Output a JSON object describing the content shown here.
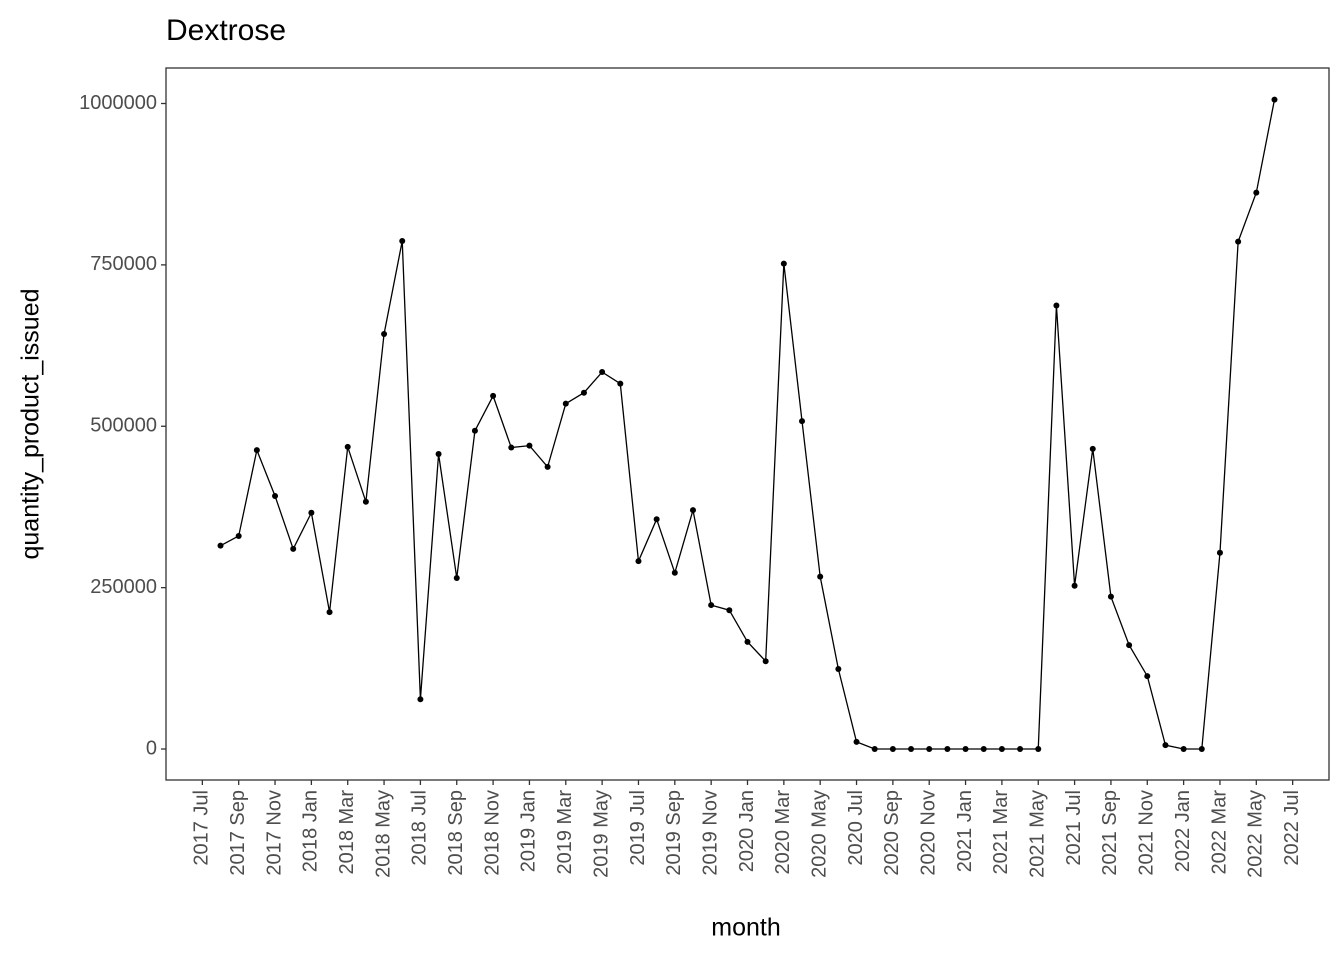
{
  "chart_data": {
    "type": "line",
    "title": "Dextrose",
    "x_label": "month",
    "y_label": "quantity_product_issued",
    "x": [
      "2017-08",
      "2017-09",
      "2017-10",
      "2017-11",
      "2017-12",
      "2018-01",
      "2018-02",
      "2018-03",
      "2018-04",
      "2018-05",
      "2018-06",
      "2018-07",
      "2018-08",
      "2018-09",
      "2018-10",
      "2018-11",
      "2018-12",
      "2019-01",
      "2019-02",
      "2019-03",
      "2019-04",
      "2019-05",
      "2019-06",
      "2019-07",
      "2019-08",
      "2019-09",
      "2019-10",
      "2019-11",
      "2019-12",
      "2020-01",
      "2020-02",
      "2020-03",
      "2020-04",
      "2020-05",
      "2020-06",
      "2020-07",
      "2020-08",
      "2020-09",
      "2020-10",
      "2020-11",
      "2020-12",
      "2021-01",
      "2021-02",
      "2021-03",
      "2021-04",
      "2021-05",
      "2021-06",
      "2021-07",
      "2021-08",
      "2021-09",
      "2021-10",
      "2021-11",
      "2021-12",
      "2022-01",
      "2022-02",
      "2022-03",
      "2022-04",
      "2022-05",
      "2022-06"
    ],
    "series": [
      {
        "name": "quantity_product_issued",
        "color": "#000000",
        "values": [
          315000,
          330000,
          463000,
          392000,
          310000,
          366000,
          212000,
          468000,
          383000,
          643000,
          787000,
          77000,
          457000,
          265000,
          493000,
          547000,
          467000,
          470000,
          437000,
          535000,
          552000,
          584000,
          566000,
          291000,
          356000,
          273000,
          370000,
          223000,
          215000,
          166000,
          136000,
          752000,
          508000,
          267000,
          124000,
          11000,
          0,
          0,
          0,
          0,
          0,
          0,
          0,
          0,
          0,
          0,
          687000,
          253000,
          465000,
          236000,
          161000,
          113000,
          6000,
          0,
          0,
          304000,
          786000,
          862000,
          1006000
        ]
      }
    ],
    "xlim": [
      "2017-05",
      "2022-09"
    ],
    "xticks": [
      {
        "value": "2017-07",
        "label": "2017 Jul"
      },
      {
        "value": "2017-09",
        "label": "2017 Sep"
      },
      {
        "value": "2017-11",
        "label": "2017 Nov"
      },
      {
        "value": "2018-01",
        "label": "2018 Jan"
      },
      {
        "value": "2018-03",
        "label": "2018 Mar"
      },
      {
        "value": "2018-05",
        "label": "2018 May"
      },
      {
        "value": "2018-07",
        "label": "2018 Jul"
      },
      {
        "value": "2018-09",
        "label": "2018 Sep"
      },
      {
        "value": "2018-11",
        "label": "2018 Nov"
      },
      {
        "value": "2019-01",
        "label": "2019 Jan"
      },
      {
        "value": "2019-03",
        "label": "2019 Mar"
      },
      {
        "value": "2019-05",
        "label": "2019 May"
      },
      {
        "value": "2019-07",
        "label": "2019 Jul"
      },
      {
        "value": "2019-09",
        "label": "2019 Sep"
      },
      {
        "value": "2019-11",
        "label": "2019 Nov"
      },
      {
        "value": "2020-01",
        "label": "2020 Jan"
      },
      {
        "value": "2020-03",
        "label": "2020 Mar"
      },
      {
        "value": "2020-05",
        "label": "2020 May"
      },
      {
        "value": "2020-07",
        "label": "2020 Jul"
      },
      {
        "value": "2020-09",
        "label": "2020 Sep"
      },
      {
        "value": "2020-11",
        "label": "2020 Nov"
      },
      {
        "value": "2021-01",
        "label": "2021 Jan"
      },
      {
        "value": "2021-03",
        "label": "2021 Mar"
      },
      {
        "value": "2021-05",
        "label": "2021 May"
      },
      {
        "value": "2021-07",
        "label": "2021 Jul"
      },
      {
        "value": "2021-09",
        "label": "2021 Sep"
      },
      {
        "value": "2021-11",
        "label": "2021 Nov"
      },
      {
        "value": "2022-01",
        "label": "2022 Jan"
      },
      {
        "value": "2022-03",
        "label": "2022 Mar"
      },
      {
        "value": "2022-05",
        "label": "2022 May"
      },
      {
        "value": "2022-07",
        "label": "2022 Jul"
      }
    ],
    "ylim": [
      -48000,
      1055000
    ],
    "yticks": [
      0,
      250000,
      500000,
      750000,
      1000000
    ],
    "grid": false
  }
}
